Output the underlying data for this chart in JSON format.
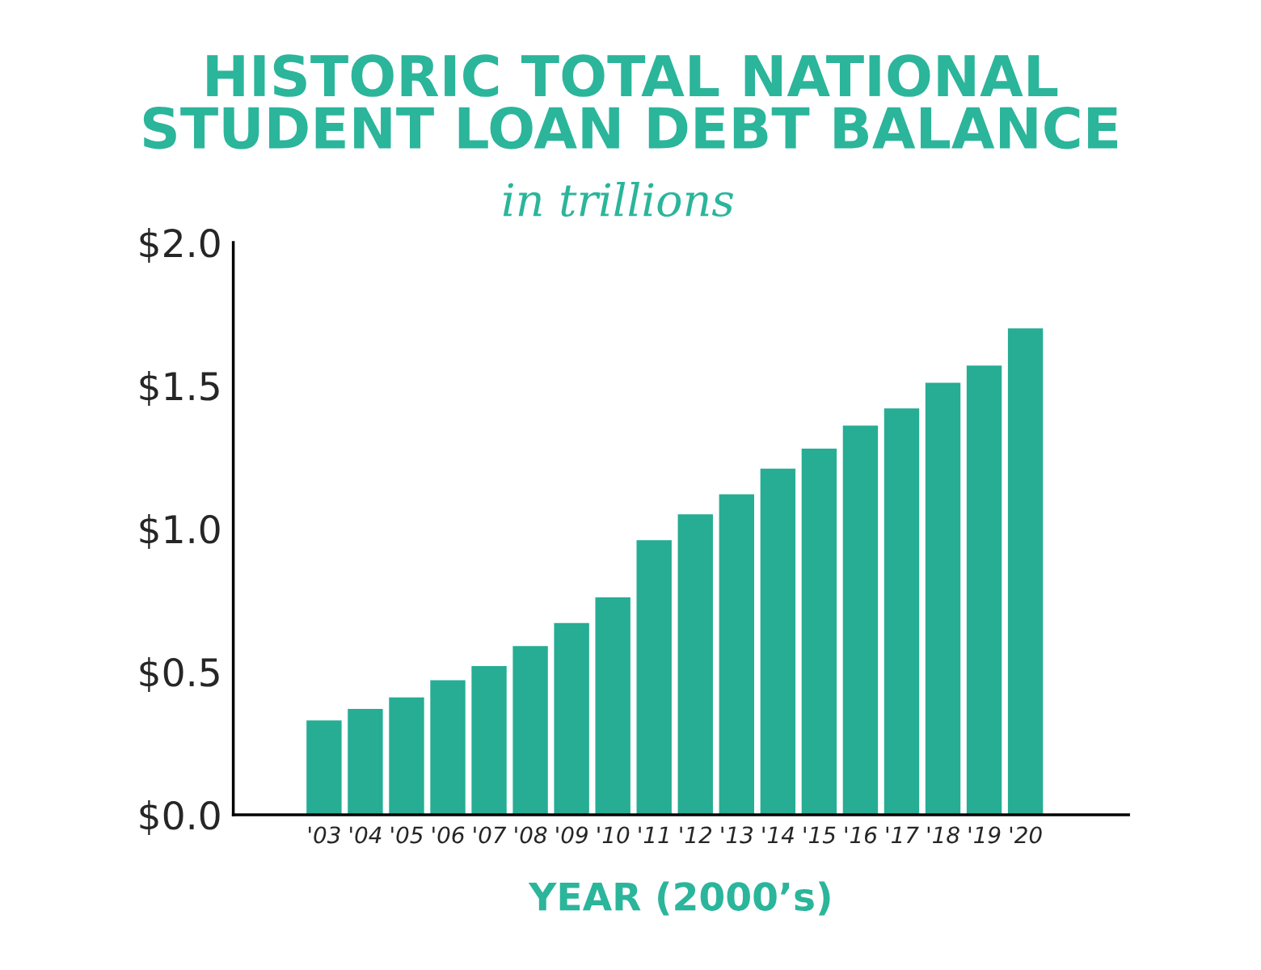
{
  "chart_data": {
    "type": "bar",
    "title": "HISTORIC TOTAL NATIONAL\nSTUDENT LOAN DEBT BALANCE",
    "subtitle": "in trillions",
    "xlabel": "YEAR (2000’s)",
    "categories": [
      "'03",
      "'04",
      "'05",
      "'06",
      "'07",
      "'08",
      "'09",
      "'10",
      "'11",
      "'12",
      "'13",
      "'14",
      "'15",
      "'16",
      "'17",
      "'18",
      "'19",
      "'20"
    ],
    "values": [
      0.33,
      0.37,
      0.41,
      0.47,
      0.52,
      0.59,
      0.67,
      0.76,
      0.96,
      1.05,
      1.12,
      1.21,
      1.28,
      1.36,
      1.42,
      1.51,
      1.57,
      1.7
    ],
    "color": "#26ad94",
    "ylim": [
      0,
      2.0
    ],
    "yticks": [
      {
        "value": 0,
        "label": "$0.0"
      },
      {
        "value": 0.5,
        "label": "$0.5"
      },
      {
        "value": 1.0,
        "label": "$1.0"
      },
      {
        "value": 1.5,
        "label": "$1.5"
      },
      {
        "value": 2.0,
        "label": "$2.0"
      }
    ],
    "grid": false
  }
}
